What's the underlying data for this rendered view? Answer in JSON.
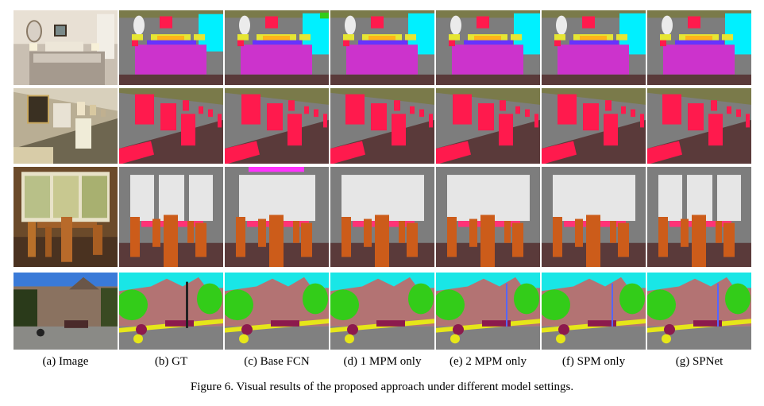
{
  "figure": {
    "columns": [
      {
        "key": "image",
        "label": "(a) Image"
      },
      {
        "key": "gt",
        "label": "(b) GT"
      },
      {
        "key": "basefcn",
        "label": "(c) Base FCN"
      },
      {
        "key": "mpm1",
        "label": "(d) 1 MPM only"
      },
      {
        "key": "mpm2",
        "label": "(e) 2 MPM only"
      },
      {
        "key": "spm",
        "label": "(f) SPM only"
      },
      {
        "key": "spnet",
        "label": "(g) SPNet"
      }
    ],
    "rows": [
      "bedroom",
      "gallery",
      "dining-room",
      "street"
    ],
    "caption": "Figure 6. Visual results of the proposed approach under different model settings."
  },
  "palette": {
    "wall": "#7d7d7d",
    "floor": "#5a3a3a",
    "bed": "#cc33cc",
    "painting": "#ff1a4d",
    "window": "#e6e6e6",
    "chair": "#cc5c1a",
    "table": "#ff3377",
    "sky": "#19e6e6",
    "tree": "#33cc19",
    "building": "#b37373",
    "person": "#8c1a4d",
    "bicycle": "#e6e619",
    "road": "#808080",
    "ceiling": "#7a7a4a",
    "lamp": "#e6e633",
    "pillow": "#ffb31a",
    "cabinet": "#00f0ff",
    "mirror": "#ebebeb"
  }
}
